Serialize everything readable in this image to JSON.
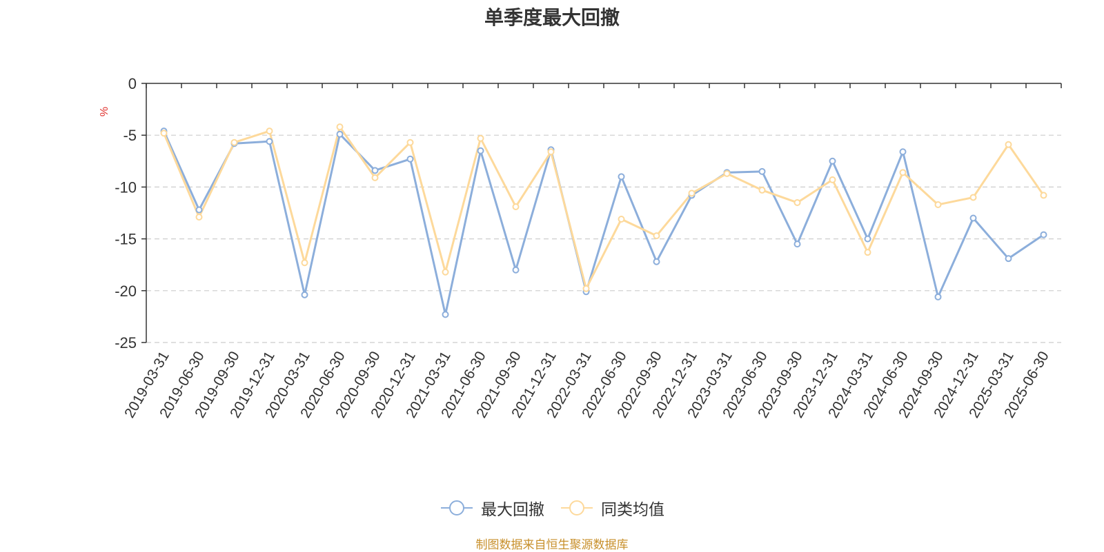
{
  "chart_data": {
    "type": "line",
    "title": "单季度最大回撤",
    "ylabel": "%",
    "xlabel": "",
    "ylim": [
      -25,
      0
    ],
    "yticks": [
      0,
      -5,
      -10,
      -15,
      -20,
      -25
    ],
    "grid": true,
    "legend_position": "bottom",
    "categories": [
      "2019-03-31",
      "2019-06-30",
      "2019-09-30",
      "2019-12-31",
      "2020-03-31",
      "2020-06-30",
      "2020-09-30",
      "2020-12-31",
      "2021-03-31",
      "2021-06-30",
      "2021-09-30",
      "2021-12-31",
      "2022-03-31",
      "2022-06-30",
      "2022-09-30",
      "2022-12-31",
      "2023-03-31",
      "2023-06-30",
      "2023-09-30",
      "2023-12-31",
      "2024-03-31",
      "2024-06-30",
      "2024-09-30",
      "2024-12-31",
      "2025-03-31",
      "2025-06-30"
    ],
    "series": [
      {
        "name": "最大回撤",
        "color": "#8caedb",
        "values": [
          -4.6,
          -12.2,
          -5.8,
          -5.6,
          -20.4,
          -4.9,
          -8.4,
          -7.3,
          -22.3,
          -6.5,
          -18.0,
          -6.4,
          -20.1,
          -9.0,
          -17.2,
          -10.8,
          -8.6,
          -8.5,
          -15.5,
          -7.5,
          -15.0,
          -6.6,
          -20.6,
          -13.0,
          -16.9,
          -14.6
        ]
      },
      {
        "name": "同类均值",
        "color": "#fdd99b",
        "values": [
          -4.8,
          -12.9,
          -5.7,
          -4.6,
          -17.3,
          -4.2,
          -9.1,
          -5.7,
          -18.2,
          -5.3,
          -11.9,
          -6.6,
          -19.8,
          -13.1,
          -14.7,
          -10.6,
          -8.7,
          -10.3,
          -11.5,
          -9.3,
          -16.3,
          -8.6,
          -11.7,
          -11.0,
          -5.9,
          -10.8
        ]
      }
    ]
  },
  "source_note": "制图数据来自恒生聚源数据库"
}
